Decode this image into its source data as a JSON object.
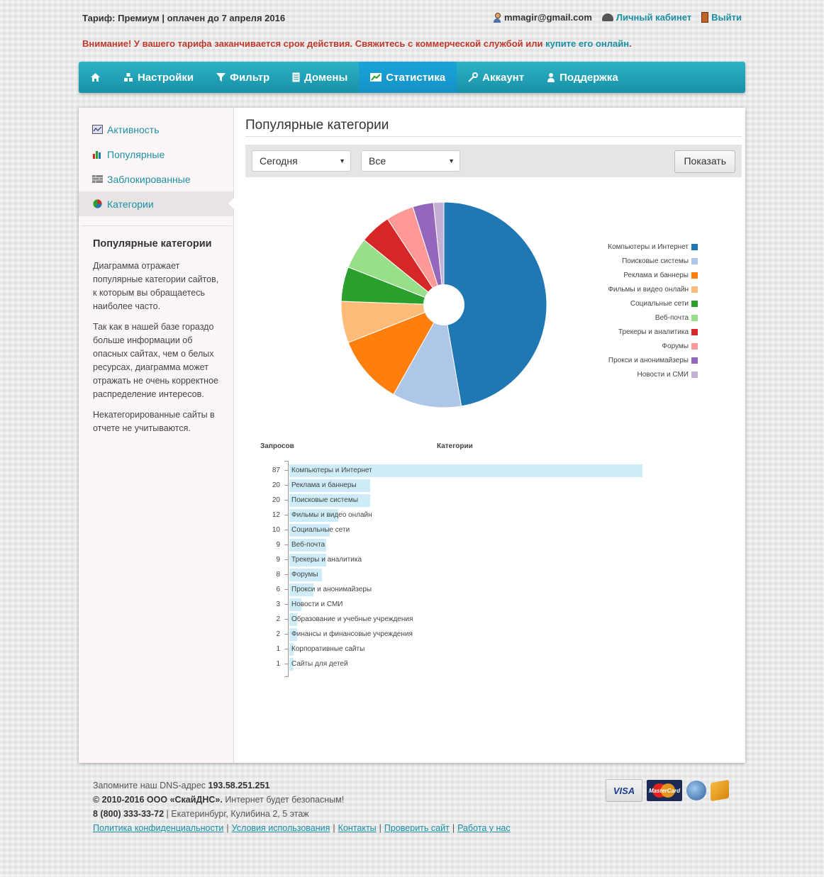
{
  "top": {
    "tariff": "Тариф: Премиум | оплачен до 7 апреля 2016",
    "email": "mmagir@gmail.com",
    "cabinet": "Личный кабинет",
    "logout": "Выйти"
  },
  "warning": {
    "text": "Внимание! У вашего тарифа заканчивается срок действия. Свяжитесь с коммерческой службой или ",
    "link": "купите его онлайн",
    "end": "."
  },
  "nav": {
    "home_icon": "home-icon",
    "items": [
      {
        "label": "Настройки",
        "icon": "settings-icon"
      },
      {
        "label": "Фильтр",
        "icon": "filter-icon"
      },
      {
        "label": "Домены",
        "icon": "document-icon"
      },
      {
        "label": "Статистика",
        "icon": "chart-icon",
        "active": true
      },
      {
        "label": "Аккаунт",
        "icon": "wrench-icon"
      },
      {
        "label": "Поддержка",
        "icon": "user-icon"
      }
    ]
  },
  "sidebar": {
    "items": [
      {
        "label": "Активность",
        "icon": "activity-icon"
      },
      {
        "label": "Популярные",
        "icon": "bar-chart-icon"
      },
      {
        "label": "Заблокированные",
        "icon": "wall-icon"
      },
      {
        "label": "Категории",
        "icon": "pie-chart-icon",
        "active": true
      }
    ],
    "desc_title": "Популярные категории",
    "desc_p1": "Диаграмма отражает популярные категории сайтов, к которым вы обращаетесь наиболее часто.",
    "desc_p2": "Так как в нашей базе гораздо больше информации об опасных сайтах, чем о белых ресурсах, диаграмма может отражать не очень корректное распределение интересов.",
    "desc_p3": "Некатегорированные сайты в отчете не учитываются."
  },
  "main": {
    "title": "Популярные категории",
    "period": "Сегодня",
    "scope": "Все",
    "show_button": "Показать"
  },
  "chart_data": [
    {
      "type": "pie",
      "donut": true,
      "legend_position": "right",
      "slices": [
        {
          "label": "Компьютеры и Интернет",
          "value": 87,
          "color": "#1f77b4"
        },
        {
          "label": "Поисковые системы",
          "value": 20,
          "color": "#aec7e8"
        },
        {
          "label": "Реклама и баннеры",
          "value": 20,
          "color": "#ff7f0e"
        },
        {
          "label": "Фильмы и видео онлайн",
          "value": 12,
          "color": "#ffbb78"
        },
        {
          "label": "Социальные сети",
          "value": 10,
          "color": "#2ca02c"
        },
        {
          "label": "Веб-почта",
          "value": 9,
          "color": "#98df8a"
        },
        {
          "label": "Трекеры и аналитика",
          "value": 9,
          "color": "#d62728"
        },
        {
          "label": "Форумы",
          "value": 8,
          "color": "#ff9896"
        },
        {
          "label": "Прокси и анонимайзеры",
          "value": 6,
          "color": "#9467bd"
        },
        {
          "label": "Новости и СМИ",
          "value": 3,
          "color": "#c5b0d5"
        }
      ]
    },
    {
      "type": "bar",
      "orientation": "horizontal",
      "xlabel": "Категории",
      "ylabel": "Запросов",
      "xlim": [
        0,
        87
      ],
      "categories": [
        "Компьютеры и Интернет",
        "Реклама и баннеры",
        "Поисковые системы",
        "Фильмы и видео онлайн",
        "Социальные сети",
        "Веб-почта",
        "Трекеры и аналитика",
        "Форумы",
        "Прокси и анонимайзеры",
        "Новости и СМИ",
        "Образование и учебные учреждения",
        "Финансы и финансовые учреждения",
        "Корпоративные сайты",
        "Сайты для детей"
      ],
      "values": [
        87,
        20,
        20,
        12,
        10,
        9,
        9,
        8,
        6,
        3,
        2,
        2,
        1,
        1
      ],
      "bar_color": "#cdecf8"
    }
  ],
  "footer": {
    "dns_text": "Запомните наш DNS-адрес ",
    "dns": "193.58.251.251",
    "copyright": "© 2010-2016 ООО «СкайДНС».",
    "slogan": " Интернет будет безопасным!",
    "phone": "8 (800) 333-33-72",
    "address": " | Екатеринбург, Кулибина 2, 5 этаж",
    "links": [
      "Политика конфиденциальности",
      "Условия использования",
      "Контакты",
      "Проверить сайт",
      "Работа у нас"
    ],
    "payments": {
      "visa": "VISA",
      "mastercard": "MasterCard",
      "webmoney_icon": "webmoney-icon",
      "yandex_icon": "yandex-money-icon"
    }
  }
}
